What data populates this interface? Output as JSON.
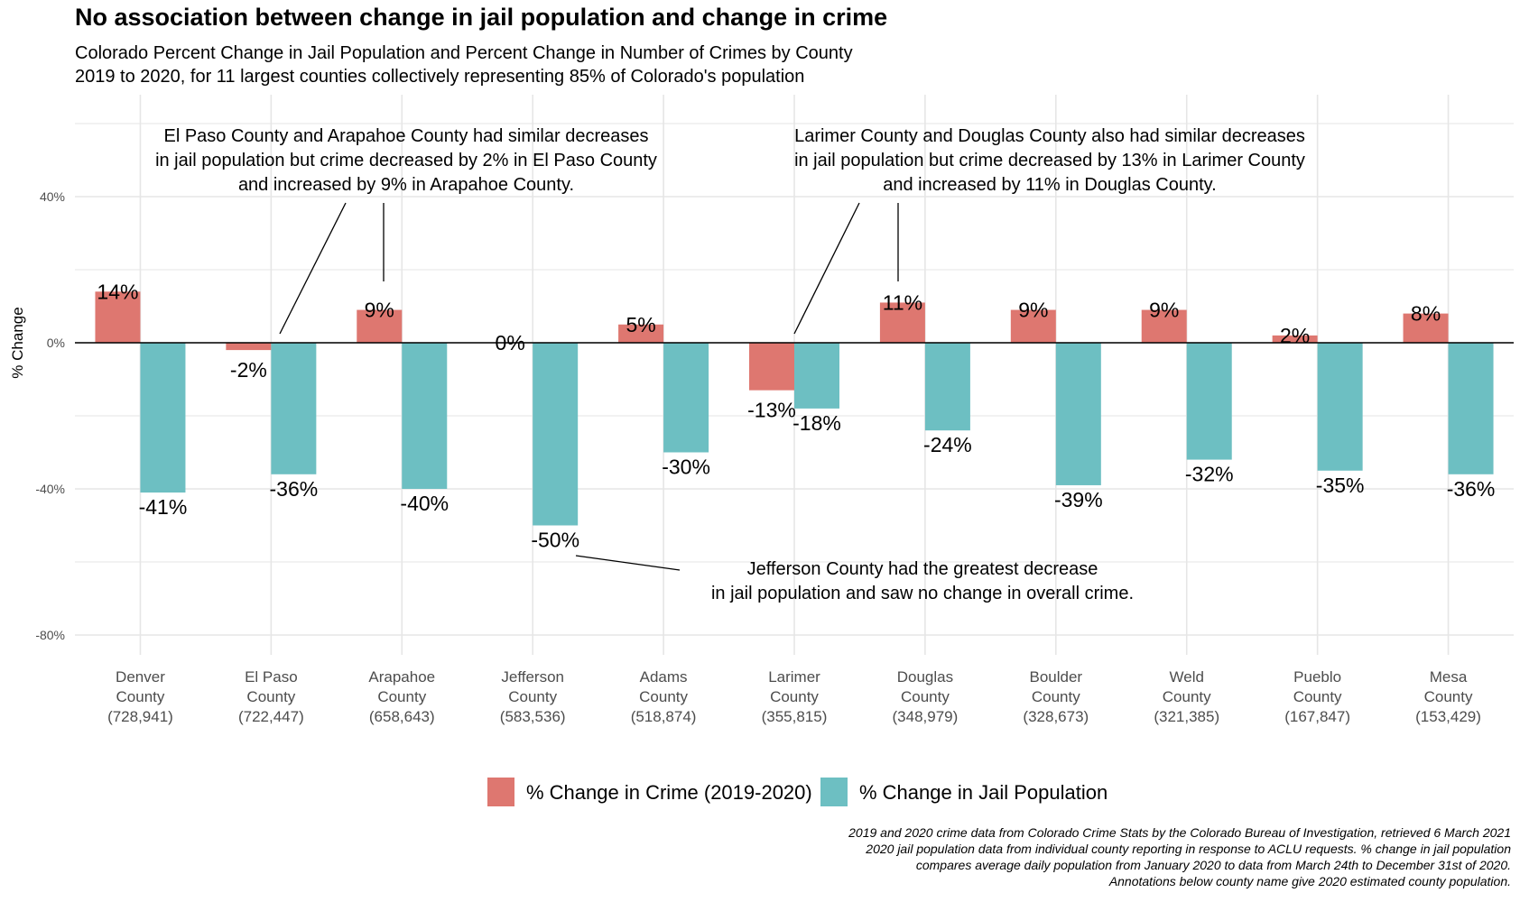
{
  "title": "No association between change in jail population and change in crime",
  "subtitle": [
    "Colorado Percent Change in Jail Population and Percent Change in Number of Crimes by County",
    "2019 to 2020, for 11 largest counties collectively representing 85% of Colorado's population"
  ],
  "caption": [
    "2019 and 2020 crime data from Colorado Crime Stats by the Colorado Bureau of Investigation, retrieved 6 March 2021",
    "2020 jail population data from individual county reporting in response to ACLU requests. % change in jail population",
    "compares average daily population from January 2020 to data from March 24th to December 31st of 2020.",
    "Annotations below county name give 2020 estimated county population."
  ],
  "colors": {
    "crime": "#de7770",
    "jail": "#6dbfc2",
    "grid": "#e6e6e6"
  },
  "chart_data": {
    "type": "bar",
    "ylabel": "% Change",
    "ylim": [
      -90,
      60
    ],
    "yticks": [
      40,
      0,
      -40,
      -80
    ],
    "ytick_labels": [
      "40%",
      "0%",
      "-40%",
      "-80%"
    ],
    "categories": [
      [
        "Denver",
        "County",
        "(728,941)"
      ],
      [
        "El Paso",
        "County",
        "(722,447)"
      ],
      [
        "Arapahoe",
        "County",
        "(658,643)"
      ],
      [
        "Jefferson",
        "County",
        "(583,536)"
      ],
      [
        "Adams",
        "County",
        "(518,874)"
      ],
      [
        "Larimer",
        "County",
        "(355,815)"
      ],
      [
        "Douglas",
        "County",
        "(348,979)"
      ],
      [
        "Boulder",
        "County",
        "(328,673)"
      ],
      [
        "Weld",
        "County",
        "(321,385)"
      ],
      [
        "Pueblo",
        "County",
        "(167,847)"
      ],
      [
        "Mesa",
        "County",
        "(153,429)"
      ]
    ],
    "series": [
      {
        "name": "% Change in Crime (2019-2020)",
        "values": [
          14,
          -2,
          9,
          0,
          5,
          -13,
          11,
          9,
          9,
          2,
          8
        ],
        "labels": [
          "14%",
          "-2%",
          "9%",
          "0%",
          "5%",
          "-13%",
          "11%",
          "9%",
          "9%",
          "2%",
          "8%"
        ]
      },
      {
        "name": "% Change in Jail Population",
        "values": [
          -41,
          -36,
          -40,
          -50,
          -30,
          -18,
          -24,
          -39,
          -32,
          -35,
          -36
        ],
        "labels": [
          "-41%",
          "-36%",
          "-40%",
          "-50%",
          "-30%",
          "-18%",
          "-24%",
          "-39%",
          "-32%",
          "-35%",
          "-36%"
        ]
      }
    ],
    "annotations": [
      {
        "lines": [
          "El Paso County and Arapahoe County had similar decreases",
          "in jail population but crime decreased by 2% in El Paso County",
          "and increased by 9% in Arapahoe County."
        ]
      },
      {
        "lines": [
          "Larimer County and Douglas County also had similar decreases",
          "in jail population but crime decreased by 13% in Larimer County",
          "and increased by 11% in Douglas County."
        ]
      },
      {
        "lines": [
          "Jefferson County had the greatest decrease",
          "in jail population and saw no change in overall crime."
        ]
      }
    ],
    "legend_position": "bottom",
    "grid": true
  }
}
